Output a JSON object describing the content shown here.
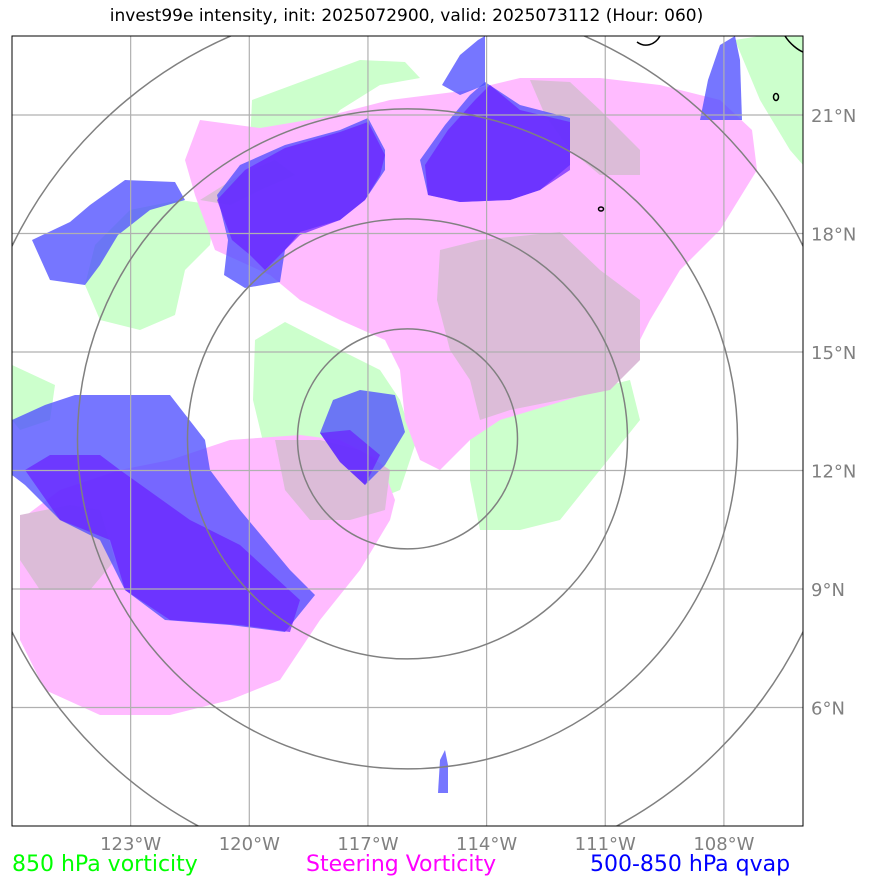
{
  "title": "invest99e intensity, init: 2025072900, valid: 2025073112 (Hour: 060)",
  "legend": [
    {
      "label": "850 hPa vorticity",
      "color": "#00ff00"
    },
    {
      "label": "Steering Vorticity",
      "color": "#ff00ff"
    },
    {
      "label": "500-850 hPa qvap",
      "color": "#0000ff"
    }
  ],
  "map": {
    "lon_range": [
      -126,
      -106
    ],
    "lat_range": [
      3,
      23
    ],
    "lon_ticks": [
      -123,
      -120,
      -117,
      -114,
      -111,
      -108
    ],
    "lat_ticks": [
      6,
      9,
      12,
      15,
      18,
      21
    ],
    "lon_tick_labels": [
      "123°W",
      "120°W",
      "117°W",
      "114°W",
      "111°W",
      "108°W"
    ],
    "lat_tick_labels": [
      "6°N",
      "9°N",
      "12°N",
      "15°N",
      "18°N",
      "21°N"
    ],
    "storm_center": {
      "lon": -116,
      "lat": 12.8
    },
    "range_ring_count": 4,
    "colors": {
      "vorticity_850": "#ccffcc",
      "steering": "#ffbbff",
      "qvap": "#5050ff",
      "qvap_dark": "#6a1fff",
      "overlap": "#dcbcd8",
      "ring": "#808080",
      "grid": "#b0b0b0",
      "tick_label": "#808080"
    }
  }
}
